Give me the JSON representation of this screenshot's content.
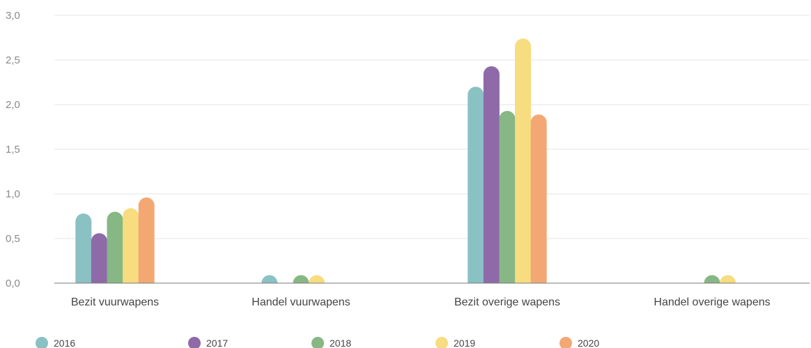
{
  "chart_data": {
    "type": "bar",
    "title": "",
    "xlabel": "",
    "ylabel": "",
    "ylim": [
      0,
      3.0
    ],
    "y_ticks": [
      "0,0",
      "0,5",
      "1,0",
      "1,5",
      "2,0",
      "2,5",
      "3,0"
    ],
    "y_tick_values": [
      0,
      0.5,
      1.0,
      1.5,
      2.0,
      2.5,
      3.0
    ],
    "grid": true,
    "legend_position": "bottom",
    "categories": [
      "Bezit vuurwapens",
      "Handel vuurwapens",
      "Bezit overige wapens",
      "Handel overige wapens"
    ],
    "series": [
      {
        "name": "2016",
        "color": "#8ac1c3",
        "values": [
          0.78,
          0.02,
          2.2,
          0.0
        ]
      },
      {
        "name": "2017",
        "color": "#8e6aa8",
        "values": [
          0.56,
          0.0,
          2.43,
          0.0
        ]
      },
      {
        "name": "2018",
        "color": "#86b784",
        "values": [
          0.8,
          0.02,
          1.93,
          0.02
        ]
      },
      {
        "name": "2019",
        "color": "#f7dc80",
        "values": [
          0.84,
          0.02,
          2.74,
          0.02
        ]
      },
      {
        "name": "2020",
        "color": "#f3a873",
        "values": [
          0.96,
          0.0,
          1.89,
          0.0
        ]
      }
    ]
  }
}
